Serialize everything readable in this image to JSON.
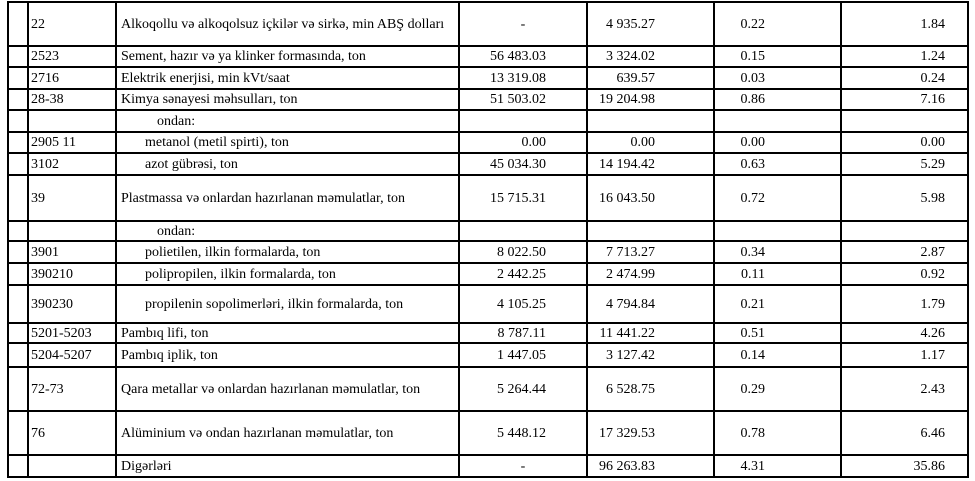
{
  "rows": [
    {
      "code": "22",
      "name": "Alkoqollu və alkoqolsuz içkilər və sirkə, min ABŞ dolları",
      "v1": "-",
      "v2": "4 935.27",
      "v3": "0.22",
      "v4": "1.84",
      "h": 44,
      "indent": 0
    },
    {
      "code": "2523",
      "name": "Sement, hazır və ya klinker formasında, ton",
      "v1": "56 483.03",
      "v2": "3 324.02",
      "v3": "0.15",
      "v4": "1.24",
      "h": 21,
      "indent": 0
    },
    {
      "code": "2716",
      "name": "Elektrik enerjisi, min kVt/saat",
      "v1": "13 319.08",
      "v2": "639.57",
      "v3": "0.03",
      "v4": "0.24",
      "h": 22,
      "indent": 0
    },
    {
      "code": "28-38",
      "name": "Kimya sənayesi məhsulları, ton",
      "v1": "51 503.02",
      "v2": "19 204.98",
      "v3": "0.86",
      "v4": "7.16",
      "h": 21,
      "indent": 0
    },
    {
      "code": "",
      "name": "ondan:",
      "v1": "",
      "v2": "",
      "v3": "",
      "v4": "",
      "h": 22,
      "indent": 2
    },
    {
      "code": "2905 11",
      "name": "metanol (metil spirti), ton",
      "v1": "0.00",
      "v2": "0.00",
      "v3": "0.00",
      "v4": "0.00",
      "h": 21,
      "indent": 1
    },
    {
      "code": "3102",
      "name": "azot gübrəsi, ton",
      "v1": "45 034.30",
      "v2": "14 194.42",
      "v3": "0.63",
      "v4": "5.29",
      "h": 22,
      "indent": 1
    },
    {
      "code": "39",
      "name": "Plastmassa və onlardan hazırlanan məmulatlar, ton",
      "v1": "15 715.31",
      "v2": "16 043.50",
      "v3": "0.72",
      "v4": "5.98",
      "h": 46,
      "indent": 0
    },
    {
      "code": "",
      "name": "ondan:",
      "v1": "",
      "v2": "",
      "v3": "",
      "v4": "",
      "h": 20,
      "indent": 2
    },
    {
      "code": "3901",
      "name": "polietilen, ilkin formalarda, ton",
      "v1": "8 022.50",
      "v2": "7 713.27",
      "v3": "0.34",
      "v4": "2.87",
      "h": 22,
      "indent": 1
    },
    {
      "code": "390210",
      "name": "polipropilen, ilkin formalarda, ton",
      "v1": "2 442.25",
      "v2": "2 474.99",
      "v3": "0.11",
      "v4": "0.92",
      "h": 22,
      "indent": 1
    },
    {
      "code": "390230",
      "name": "propilenin sopolimerləri, ilkin formalarda, ton",
      "v1": "4 105.25",
      "v2": "4 794.84",
      "v3": "0.21",
      "v4": "1.79",
      "h": 38,
      "indent": 1
    },
    {
      "code": "5201-5203",
      "name": "Pambıq lifi, ton",
      "v1": "8 787.11",
      "v2": "11 441.22",
      "v3": "0.51",
      "v4": "4.26",
      "h": 20,
      "indent": 0
    },
    {
      "code": "5204-5207",
      "name": "Pambıq iplik, ton",
      "v1": "1 447.05",
      "v2": "3 127.42",
      "v3": "0.14",
      "v4": "1.17",
      "h": 24,
      "indent": 0
    },
    {
      "code": "72-73",
      "name": "Qara metallar və onlardan hazırlanan məmulatlar, ton",
      "v1": "5 264.44",
      "v2": "6 528.75",
      "v3": "0.29",
      "v4": "2.43",
      "h": 44,
      "indent": 0
    },
    {
      "code": "76",
      "name": "Alüminium və ondan hazırlanan məmulatlar, ton",
      "v1": "5 448.12",
      "v2": "17 329.53",
      "v3": "0.78",
      "v4": "6.46",
      "h": 44,
      "indent": 0
    },
    {
      "code": "",
      "name": "Digərləri",
      "v1": "-",
      "v2": "96 263.83",
      "v3": "4.31",
      "v4": "35.86",
      "h": 22,
      "indent": 0
    }
  ]
}
